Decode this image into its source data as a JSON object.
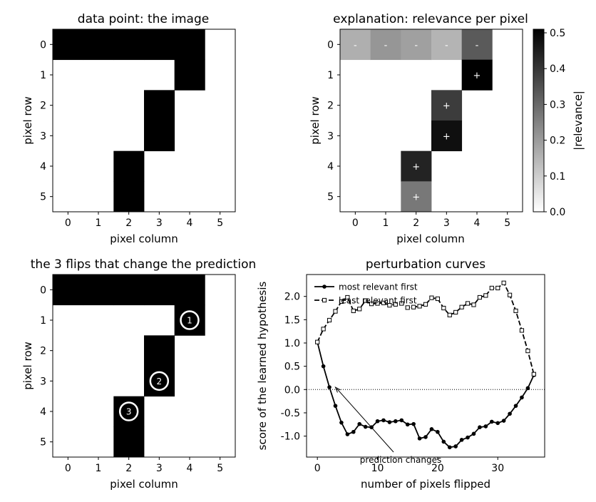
{
  "chart_data": [
    {
      "id": "image",
      "type": "heatmap",
      "title": "data point: the image",
      "xlabel": "pixel column",
      "ylabel": "pixel row",
      "xticks": [
        "0",
        "1",
        "2",
        "3",
        "4",
        "5"
      ],
      "yticks": [
        "0",
        "1",
        "2",
        "3",
        "4",
        "5"
      ],
      "colormap": "grayscale (1 = black)",
      "grid": [
        [
          1,
          1,
          1,
          1,
          1,
          0
        ],
        [
          0,
          0,
          0,
          0,
          1,
          0
        ],
        [
          0,
          0,
          0,
          1,
          0,
          0
        ],
        [
          0,
          0,
          0,
          1,
          0,
          0
        ],
        [
          0,
          0,
          1,
          0,
          0,
          0
        ],
        [
          0,
          0,
          1,
          0,
          0,
          0
        ]
      ]
    },
    {
      "id": "relevance",
      "type": "heatmap",
      "title": "explanation: relevance per pixel",
      "xlabel": "pixel column",
      "ylabel": "pixel row",
      "xticks": [
        "0",
        "1",
        "2",
        "3",
        "4",
        "5"
      ],
      "yticks": [
        "0",
        "1",
        "2",
        "3",
        "4",
        "5"
      ],
      "colorbar_label": "|relevance|",
      "colorbar_range": [
        0,
        0.51
      ],
      "colorbar_ticks": [
        "0.0",
        "0.1",
        "0.2",
        "0.3",
        "0.4",
        "0.5"
      ],
      "cells": [
        {
          "row": 0,
          "col": 0,
          "value": 0.16,
          "sign": "-"
        },
        {
          "row": 0,
          "col": 1,
          "value": 0.21,
          "sign": "-"
        },
        {
          "row": 0,
          "col": 2,
          "value": 0.19,
          "sign": "-"
        },
        {
          "row": 0,
          "col": 3,
          "value": 0.15,
          "sign": "-"
        },
        {
          "row": 0,
          "col": 4,
          "value": 0.33,
          "sign": "-"
        },
        {
          "row": 1,
          "col": 4,
          "value": 0.51,
          "sign": "+"
        },
        {
          "row": 2,
          "col": 3,
          "value": 0.39,
          "sign": "+"
        },
        {
          "row": 3,
          "col": 3,
          "value": 0.48,
          "sign": "+"
        },
        {
          "row": 4,
          "col": 2,
          "value": 0.44,
          "sign": "+"
        },
        {
          "row": 5,
          "col": 2,
          "value": 0.27,
          "sign": "+"
        }
      ]
    },
    {
      "id": "flips",
      "type": "heatmap",
      "title": "the 3 flips that change the prediction",
      "xlabel": "pixel column",
      "ylabel": "pixel row",
      "xticks": [
        "0",
        "1",
        "2",
        "3",
        "4",
        "5"
      ],
      "yticks": [
        "0",
        "1",
        "2",
        "3",
        "4",
        "5"
      ],
      "grid": [
        [
          1,
          1,
          1,
          1,
          1,
          0
        ],
        [
          0,
          0,
          0,
          0,
          1,
          0
        ],
        [
          0,
          0,
          0,
          1,
          0,
          0
        ],
        [
          0,
          0,
          0,
          1,
          0,
          0
        ],
        [
          0,
          0,
          1,
          0,
          0,
          0
        ],
        [
          0,
          0,
          1,
          0,
          0,
          0
        ]
      ],
      "markers": [
        {
          "label": "1",
          "row": 1,
          "col": 4
        },
        {
          "label": "2",
          "row": 3,
          "col": 3
        },
        {
          "label": "3",
          "row": 4,
          "col": 2
        }
      ]
    },
    {
      "id": "curves",
      "type": "line",
      "title": "perturbation curves",
      "xlabel": "number of pixels flipped",
      "ylabel": "score of the learned hypothesis",
      "xlim": [
        -1.8,
        37.8
      ],
      "ylim": [
        -1.45,
        2.47
      ],
      "xticks": [
        0,
        10,
        20,
        30
      ],
      "yticks": [
        "2.0",
        "1.5",
        "1.0",
        "0.5",
        "0.0",
        "-0.5",
        "-1.0"
      ],
      "ytick_values": [
        2.0,
        1.5,
        1.0,
        0.5,
        0.0,
        -0.5,
        -1.0
      ],
      "reference_line_y": 0.0,
      "legend_position": "upper-left",
      "annotation": {
        "text": "prediction changes",
        "point": [
          3,
          0.05
        ]
      },
      "series": [
        {
          "name": "most relevant first",
          "style": "solid",
          "marker": "filled-circle",
          "x": [
            0,
            1,
            2,
            3,
            4,
            5,
            6,
            7,
            8,
            9,
            10,
            11,
            12,
            13,
            14,
            15,
            16,
            17,
            18,
            19,
            20,
            21,
            22,
            23,
            24,
            25,
            26,
            27,
            28,
            29,
            30,
            31,
            32,
            33,
            34,
            35,
            36
          ],
          "y": [
            1.02,
            0.5,
            0.05,
            -0.35,
            -0.71,
            -0.96,
            -0.91,
            -0.74,
            -0.8,
            -0.81,
            -0.68,
            -0.66,
            -0.7,
            -0.68,
            -0.66,
            -0.75,
            -0.74,
            -1.05,
            -1.02,
            -0.85,
            -0.91,
            -1.12,
            -1.24,
            -1.22,
            -1.08,
            -1.03,
            -0.95,
            -0.81,
            -0.79,
            -0.69,
            -0.72,
            -0.67,
            -0.52,
            -0.35,
            -0.17,
            0.03,
            0.31
          ]
        },
        {
          "name": "least relevant first",
          "style": "dashed",
          "marker": "open-square",
          "x": [
            0,
            1,
            2,
            3,
            4,
            5,
            6,
            7,
            8,
            9,
            10,
            11,
            12,
            13,
            14,
            15,
            16,
            17,
            18,
            19,
            20,
            21,
            22,
            23,
            24,
            25,
            26,
            27,
            28,
            29,
            30,
            31,
            32,
            33,
            34,
            35,
            36
          ],
          "y": [
            1.02,
            1.3,
            1.49,
            1.68,
            1.89,
            1.98,
            1.69,
            1.73,
            1.91,
            1.84,
            1.85,
            1.86,
            1.81,
            1.83,
            1.85,
            1.76,
            1.77,
            1.79,
            1.83,
            1.97,
            1.95,
            1.75,
            1.6,
            1.66,
            1.77,
            1.85,
            1.82,
            1.98,
            2.02,
            2.18,
            2.18,
            2.29,
            2.03,
            1.69,
            1.27,
            0.83,
            0.33
          ]
        }
      ]
    }
  ]
}
